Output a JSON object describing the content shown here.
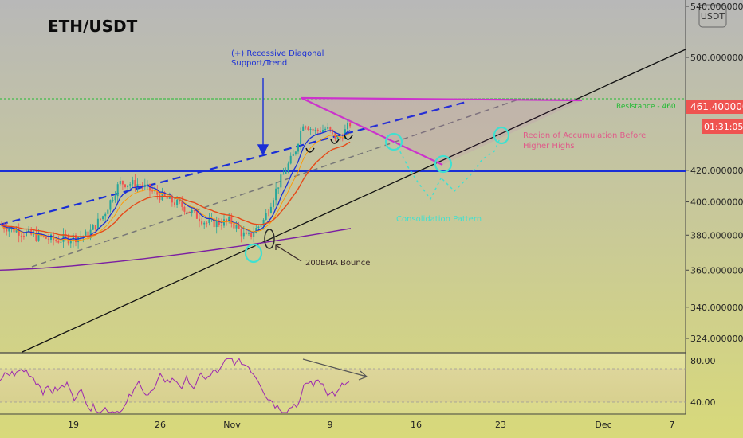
{
  "chart_data": {
    "type": "candlestick",
    "title": "ETH/USDT",
    "currency_badge": "USDT",
    "price_axis": {
      "ticks": [
        "540.0000000",
        "500.0000000",
        "420.0000000",
        "400.0000000",
        "380.0000000",
        "360.0000000",
        "340.0000000",
        "324.0000000"
      ],
      "tick_values": [
        540,
        500,
        420,
        400,
        380,
        360,
        340,
        324
      ],
      "scale": "log",
      "range": [
        316,
        540
      ]
    },
    "last_price": "461.4000000",
    "countdown": "01:31:05",
    "time_axis": {
      "ticks": [
        "19",
        "26",
        "Nov",
        "9",
        "16",
        "23",
        "Dec",
        "7"
      ]
    },
    "rsi": {
      "ticks": [
        "80.00",
        "40.00"
      ],
      "tick_values": [
        80,
        40
      ],
      "upper_band": 70,
      "lower_band": 30
    },
    "levels": [
      {
        "name": "Resistance - 460",
        "label": "Resistance - 460",
        "value": 461,
        "color": "#22bb33"
      },
      {
        "name": "support-420",
        "value": 420,
        "color": "#1a2fd6"
      }
    ],
    "annotations": [
      {
        "name": "recessive-diagonal",
        "text": "(+) Recessive Diagonal\nSupport/Trend",
        "color": "#1a2fd6"
      },
      {
        "name": "ema-bounce",
        "text": "200EMA Bounce",
        "color": "#3a2a2a"
      },
      {
        "name": "accumulation",
        "text": "Region of Accumulation Before\nHigher Highs",
        "color": "#e05a8a"
      },
      {
        "name": "scenario",
        "text": "Consolidation Pattern",
        "color": "#40e0d0"
      }
    ],
    "colors": {
      "up": "#26a69a",
      "down": "#ef5350",
      "ema_fast": "#1a2fd6",
      "ema_mid": "#e64a19",
      "ema_200": "#7b1fa2",
      "triangle": "#cc33cc",
      "rsi": "#9c27b0",
      "last_price_bg": "#ef5350",
      "background_top": "#b8b8b8",
      "background_bottom": "#d8d97a"
    }
  }
}
